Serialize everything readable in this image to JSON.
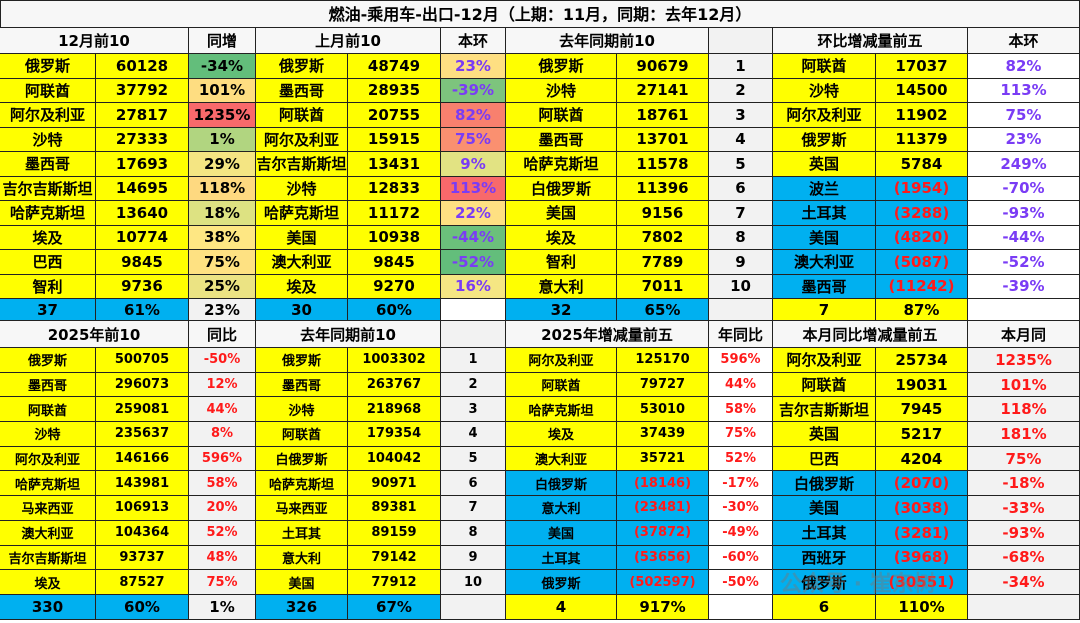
{
  "title": "燃油-乘用车-出口-12月（上期：11月，同期：去年12月）",
  "watermark": "公众号 · 崔东树",
  "colors": {
    "yellow": "#ffff00",
    "blue": "#00b0f0",
    "purple_text": "#7a3cf5",
    "red_text": "#ff1a1a"
  },
  "top": {
    "headers": [
      "12月前10",
      "同增",
      "上月前10",
      "本环",
      "去年同期前10",
      "",
      "环比增减量前五",
      "本环"
    ],
    "rows": [
      [
        "俄罗斯",
        "60128",
        "-34%",
        "俄罗斯",
        "48749",
        "23%",
        "俄罗斯",
        "90679",
        "1",
        "阿联酋",
        "17037",
        "82%"
      ],
      [
        "阿联酋",
        "37792",
        "101%",
        "墨西哥",
        "28935",
        "-39%",
        "沙特",
        "27141",
        "2",
        "沙特",
        "14500",
        "113%"
      ],
      [
        "阿尔及利亚",
        "27817",
        "1235%",
        "阿联酋",
        "20755",
        "82%",
        "阿联酋",
        "18761",
        "3",
        "阿尔及利亚",
        "11902",
        "75%"
      ],
      [
        "沙特",
        "27333",
        "1%",
        "阿尔及利亚",
        "15915",
        "75%",
        "墨西哥",
        "13701",
        "4",
        "俄罗斯",
        "11379",
        "23%"
      ],
      [
        "墨西哥",
        "17693",
        "29%",
        "吉尔吉斯斯坦",
        "13431",
        "9%",
        "哈萨克斯坦",
        "11578",
        "5",
        "英国",
        "5784",
        "249%"
      ],
      [
        "吉尔吉斯斯坦",
        "14695",
        "118%",
        "沙特",
        "12833",
        "113%",
        "白俄罗斯",
        "11396",
        "6",
        "波兰",
        "(1954)",
        "-70%"
      ],
      [
        "哈萨克斯坦",
        "13640",
        "18%",
        "哈萨克斯坦",
        "11172",
        "22%",
        "美国",
        "9156",
        "7",
        "土耳其",
        "(3288)",
        "-93%"
      ],
      [
        "埃及",
        "10774",
        "38%",
        "美国",
        "10938",
        "-44%",
        "埃及",
        "7802",
        "8",
        "美国",
        "(4820)",
        "-44%"
      ],
      [
        "巴西",
        "9845",
        "75%",
        "澳大利亚",
        "9845",
        "-52%",
        "智利",
        "7789",
        "9",
        "澳大利亚",
        "(5087)",
        "-52%"
      ],
      [
        "智利",
        "9736",
        "25%",
        "埃及",
        "9270",
        "16%",
        "意大利",
        "7011",
        "10",
        "墨西哥",
        "(11242)",
        "-39%"
      ]
    ],
    "totals": [
      "37",
      "61%",
      "23%",
      "30",
      "60%",
      "",
      "32",
      "65%",
      "",
      "7",
      "87%",
      ""
    ],
    "yoy_heat": [
      "#63be7b",
      "#fedd81",
      "#f8696b",
      "#b1d580",
      "#f4e583",
      "#fed980",
      "#dde282",
      "#fee783",
      "#fee182",
      "#ebe383"
    ],
    "mom_heat": [
      "#fedf82",
      "#7dc47d",
      "#f8806e",
      "#fa9070",
      "#e2e383",
      "#f8696b",
      "#fee082",
      "#6bc07b",
      "#63be7b",
      "#f5e683"
    ]
  },
  "bottom": {
    "headers": [
      "2025年前10",
      "同比",
      "去年同期前10",
      "",
      "2025年增减量前五",
      "年同比",
      "本月同比增减量前五",
      "本月同"
    ],
    "rows": [
      [
        "俄罗斯",
        "500705",
        "-50%",
        "俄罗斯",
        "1003302",
        "1",
        "阿尔及利亚",
        "125170",
        "596%",
        "阿尔及利亚",
        "25734",
        "1235%"
      ],
      [
        "墨西哥",
        "296073",
        "12%",
        "墨西哥",
        "263767",
        "2",
        "阿联酋",
        "79727",
        "44%",
        "阿联酋",
        "19031",
        "101%"
      ],
      [
        "阿联酋",
        "259081",
        "44%",
        "沙特",
        "218968",
        "3",
        "哈萨克斯坦",
        "53010",
        "58%",
        "吉尔吉斯斯坦",
        "7945",
        "118%"
      ],
      [
        "沙特",
        "235637",
        "8%",
        "阿联酋",
        "179354",
        "4",
        "埃及",
        "37439",
        "75%",
        "英国",
        "5217",
        "181%"
      ],
      [
        "阿尔及利亚",
        "146166",
        "596%",
        "白俄罗斯",
        "104042",
        "5",
        "澳大利亚",
        "35721",
        "52%",
        "巴西",
        "4204",
        "75%"
      ],
      [
        "哈萨克斯坦",
        "143981",
        "58%",
        "哈萨克斯坦",
        "90971",
        "6",
        "白俄罗斯",
        "(18146)",
        "-17%",
        "白俄罗斯",
        "(2070)",
        "-18%"
      ],
      [
        "马来西亚",
        "106913",
        "20%",
        "马来西亚",
        "89381",
        "7",
        "意大利",
        "(23481)",
        "-30%",
        "美国",
        "(3038)",
        "-33%"
      ],
      [
        "澳大利亚",
        "104364",
        "52%",
        "土耳其",
        "89159",
        "8",
        "美国",
        "(37872)",
        "-49%",
        "土耳其",
        "(3281)",
        "-93%"
      ],
      [
        "吉尔吉斯斯坦",
        "93737",
        "48%",
        "意大利",
        "79142",
        "9",
        "土耳其",
        "(53656)",
        "-60%",
        "西班牙",
        "(3968)",
        "-68%"
      ],
      [
        "埃及",
        "87527",
        "75%",
        "美国",
        "77912",
        "10",
        "俄罗斯",
        "(502597)",
        "-50%",
        "俄罗斯",
        "(30551)",
        "-34%"
      ]
    ],
    "totals": [
      "330",
      "60%",
      "1%",
      "326",
      "67%",
      "",
      "4",
      "917%",
      "",
      "6",
      "110%",
      ""
    ]
  }
}
